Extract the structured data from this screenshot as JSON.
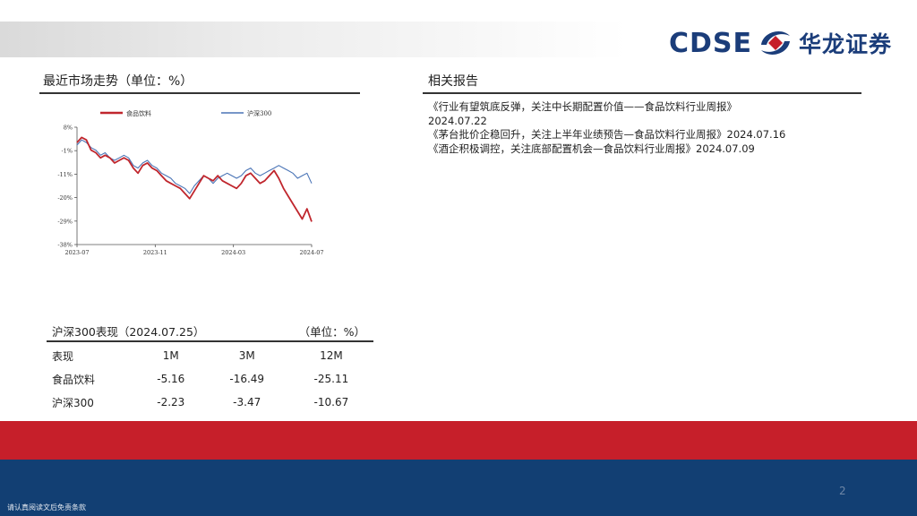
{
  "header": {
    "logo_latin": "CDSE",
    "logo_cn": "华龙证券",
    "logo_colors": {
      "navy": "#1b3d7a",
      "red": "#c61f2a"
    }
  },
  "market": {
    "title": "最近市场走势（单位：%）"
  },
  "reports": {
    "title": "相关报告",
    "items": [
      "《行业有望筑底反弹，关注中长期配置价值——食品饮料行业周报》",
      "2024.07.22",
      "《茅台批价企稳回升，关注上半年业绩预告—食品饮料行业周报》2024.07.16",
      "《酒企积极调控，关注底部配置机会—食品饮料行业周报》2024.07.09"
    ]
  },
  "performance": {
    "title": "沪深300表现（2024.07.25）",
    "unit": "（单位：%）",
    "columns": [
      "表现",
      "1M",
      "3M",
      "12M"
    ],
    "rows": [
      {
        "name": "食品饮料",
        "values": [
          "-5.16",
          "-16.49",
          "-25.11"
        ]
      },
      {
        "name": "沪深300",
        "values": [
          "-2.23",
          "-3.47",
          "-10.67"
        ]
      }
    ]
  },
  "footer": {
    "page_number": "2",
    "disclaimer": "请认真阅读文后免责条款",
    "colors": {
      "red_band": "#c61f2a",
      "blue_band": "#123f73"
    }
  },
  "chart_data": {
    "type": "line",
    "title": "",
    "xlabel": "",
    "ylabel": "",
    "x_ticks": [
      "2023-07",
      "2023-11",
      "2024-03",
      "2024-07"
    ],
    "y_ticks": [
      "8%",
      "-1%",
      "-11%",
      "-20%",
      "-29%",
      "-38%"
    ],
    "ylim": [
      -38,
      8
    ],
    "grid": false,
    "legend": "top",
    "x": [
      0,
      0.02,
      0.04,
      0.06,
      0.08,
      0.1,
      0.12,
      0.14,
      0.16,
      0.18,
      0.2,
      0.22,
      0.24,
      0.26,
      0.28,
      0.3,
      0.32,
      0.34,
      0.36,
      0.38,
      0.4,
      0.42,
      0.44,
      0.46,
      0.48,
      0.5,
      0.52,
      0.54,
      0.56,
      0.58,
      0.6,
      0.62,
      0.64,
      0.66,
      0.68,
      0.7,
      0.72,
      0.74,
      0.76,
      0.78,
      0.8,
      0.82,
      0.84,
      0.86,
      0.88,
      0.9,
      0.92,
      0.94,
      0.96,
      0.98,
      1.0
    ],
    "series": [
      {
        "name": "食品饮料",
        "color": "#c0262d",
        "values": [
          2,
          4,
          3,
          -1,
          -2,
          -4,
          -3,
          -4,
          -6,
          -5,
          -4,
          -5,
          -8,
          -10,
          -7,
          -6,
          -8,
          -9,
          -11,
          -13,
          -14,
          -15,
          -16,
          -18,
          -20,
          -17,
          -14,
          -11,
          -12,
          -13,
          -11,
          -13,
          -14,
          -15,
          -16,
          -14,
          -11,
          -10,
          -12,
          -14,
          -13,
          -11,
          -9,
          -12,
          -16,
          -19,
          -22,
          -25,
          -28,
          -24,
          -29
        ]
      },
      {
        "name": "沪深300",
        "color": "#4a74b6",
        "values": [
          1,
          3,
          2,
          0,
          -1,
          -3,
          -2,
          -4,
          -5,
          -4,
          -3,
          -4,
          -7,
          -8,
          -6,
          -5,
          -7,
          -8,
          -10,
          -11,
          -12,
          -14,
          -15,
          -16,
          -18,
          -15,
          -13,
          -11,
          -12,
          -14,
          -12,
          -11,
          -10,
          -11,
          -12,
          -11,
          -9,
          -8,
          -10,
          -11,
          -10,
          -9,
          -8,
          -7,
          -8,
          -9,
          -10,
          -12,
          -11,
          -10,
          -14
        ]
      }
    ]
  }
}
